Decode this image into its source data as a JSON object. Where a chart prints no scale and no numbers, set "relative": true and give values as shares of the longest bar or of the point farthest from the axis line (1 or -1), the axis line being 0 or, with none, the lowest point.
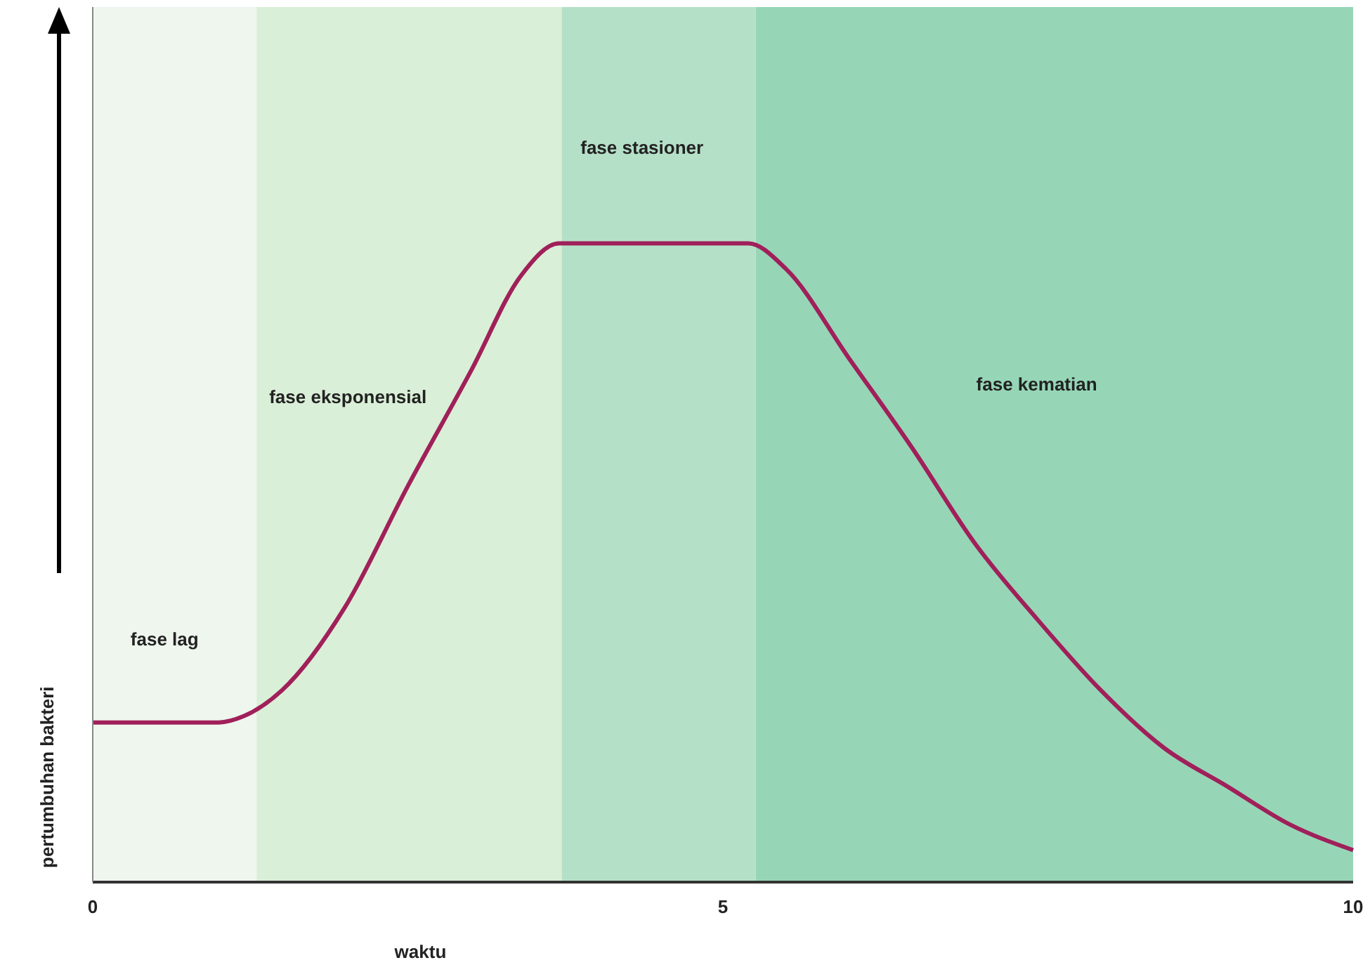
{
  "chart_data": {
    "type": "line",
    "relative": true,
    "xlabel": "waktu",
    "ylabel": "pertumbuhan bakteri",
    "xlim": [
      0,
      10
    ],
    "xticks": [
      0,
      5,
      10
    ],
    "grid": false,
    "marker": "none",
    "line_style": "solid",
    "x": [
      0,
      1.0,
      1.2,
      1.5,
      2.0,
      2.5,
      3.0,
      3.4,
      3.7,
      5.2,
      5.5,
      6.0,
      6.5,
      7.0,
      7.5,
      8.0,
      8.5,
      9.0,
      9.5,
      10
    ],
    "series": [
      {
        "color": "#a0205a",
        "values": [
          0.25,
          0.25,
          0.26,
          0.3,
          0.43,
          0.62,
          0.8,
          0.95,
          1,
          1,
          0.96,
          0.82,
          0.68,
          0.53,
          0.41,
          0.3,
          0.21,
          0.15,
          0.09,
          0.05
        ]
      }
    ],
    "bands": [
      {
        "axis": "x",
        "from": 0,
        "to": 1.3,
        "label": "fase lag",
        "color": "#eef6ee"
      },
      {
        "axis": "x",
        "from": 1.3,
        "to": 3.72,
        "label": "fase eksponensial",
        "color": "#daefd7"
      },
      {
        "axis": "x",
        "from": 3.72,
        "to": 5.26,
        "label": "fase stasioner",
        "color": "#b5e0c8"
      },
      {
        "axis": "x",
        "from": 5.26,
        "to": 10,
        "label": "fase kematian",
        "color": "#96d6b7"
      }
    ]
  }
}
